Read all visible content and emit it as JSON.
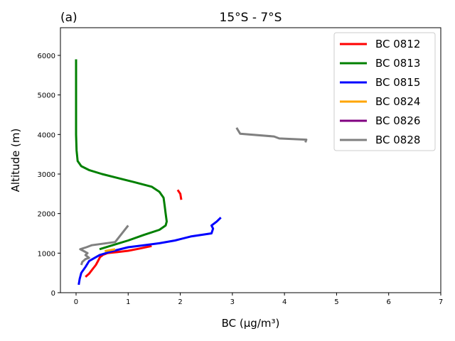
{
  "chart_data": {
    "type": "line",
    "title": "15°S - 7°S",
    "panel_label": "(a)",
    "xlabel": "BC (μg/m³)",
    "ylabel": "Altitude (m)",
    "xlim": [
      -0.3,
      7.0
    ],
    "ylim": [
      0,
      6700
    ],
    "xticks": [
      0,
      1,
      2,
      3,
      4,
      5,
      6,
      7
    ],
    "yticks": [
      0,
      1000,
      2000,
      3000,
      4000,
      5000,
      6000
    ],
    "grid": false,
    "legend_position": "top-right",
    "series": [
      {
        "name": "BC 0812",
        "color": "#ff0000",
        "segments": [
          [
            [
              0.18,
              400
            ],
            [
              0.25,
              480
            ],
            [
              0.32,
              600
            ],
            [
              0.38,
              700
            ],
            [
              0.42,
              800
            ],
            [
              0.46,
              900
            ],
            [
              0.52,
              960
            ],
            [
              0.6,
              1000
            ],
            [
              0.8,
              1030
            ],
            [
              1.0,
              1060
            ],
            [
              1.2,
              1110
            ],
            [
              1.45,
              1180
            ]
          ],
          [
            [
              1.95,
              2600
            ],
            [
              2.0,
              2500
            ],
            [
              2.02,
              2350
            ]
          ]
        ]
      },
      {
        "name": "BC 0813",
        "color": "#008000",
        "segments": [
          [
            [
              0.45,
              1100
            ],
            [
              0.7,
              1200
            ],
            [
              1.0,
              1320
            ],
            [
              1.3,
              1460
            ],
            [
              1.6,
              1590
            ],
            [
              1.72,
              1700
            ],
            [
              1.74,
              1800
            ],
            [
              1.72,
              2000
            ],
            [
              1.7,
              2200
            ],
            [
              1.68,
              2400
            ],
            [
              1.6,
              2550
            ],
            [
              1.45,
              2680
            ],
            [
              1.1,
              2800
            ],
            [
              0.8,
              2900
            ],
            [
              0.5,
              3000
            ],
            [
              0.25,
              3100
            ],
            [
              0.1,
              3200
            ],
            [
              0.03,
              3330
            ],
            [
              0.01,
              3600
            ],
            [
              0.0,
              4000
            ],
            [
              0.0,
              5000
            ],
            [
              0.0,
              5900
            ]
          ]
        ]
      },
      {
        "name": "BC 0815",
        "color": "#0000ff",
        "segments": [
          [
            [
              0.05,
              200
            ],
            [
              0.07,
              350
            ],
            [
              0.1,
              500
            ],
            [
              0.18,
              650
            ],
            [
              0.25,
              800
            ],
            [
              0.45,
              950
            ],
            [
              0.7,
              1050
            ],
            [
              1.0,
              1150
            ],
            [
              1.3,
              1200
            ],
            [
              1.6,
              1250
            ],
            [
              1.9,
              1320
            ],
            [
              2.2,
              1420
            ],
            [
              2.6,
              1500
            ],
            [
              2.63,
              1620
            ],
            [
              2.6,
              1700
            ],
            [
              2.7,
              1800
            ],
            [
              2.78,
              1900
            ]
          ]
        ]
      },
      {
        "name": "BC 0824",
        "color": "#ffa500",
        "segments": [
          [
            [
              0.55,
              1050
            ],
            [
              0.75,
              1100
            ]
          ]
        ]
      },
      {
        "name": "BC 0826",
        "color": "#800080",
        "segments": []
      },
      {
        "name": "BC 0828",
        "color": "#808080",
        "segments": [
          [
            [
              0.1,
              700
            ],
            [
              0.12,
              780
            ],
            [
              0.18,
              850
            ],
            [
              0.25,
              880
            ],
            [
              0.18,
              950
            ],
            [
              0.22,
              1000
            ],
            [
              0.15,
              1050
            ],
            [
              0.08,
              1100
            ],
            [
              0.2,
              1150
            ],
            [
              0.3,
              1200
            ],
            [
              0.75,
              1280
            ],
            [
              1.0,
              1700
            ]
          ],
          [
            [
              3.08,
              4170
            ],
            [
              3.15,
              4020
            ],
            [
              3.8,
              3950
            ],
            [
              3.9,
              3900
            ],
            [
              4.42,
              3870
            ],
            [
              4.4,
              3800
            ]
          ]
        ]
      }
    ]
  }
}
